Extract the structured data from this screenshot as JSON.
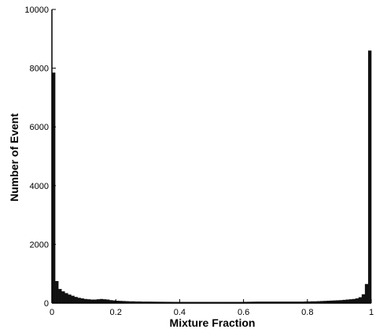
{
  "chart_data": {
    "type": "bar",
    "title": "",
    "xlabel": "Mixture Fraction",
    "ylabel": "Number of Event",
    "xlim": [
      0,
      1
    ],
    "ylim": [
      0,
      10000
    ],
    "x_ticks": [
      {
        "value": 0,
        "label": "0"
      },
      {
        "value": 0.2,
        "label": "0.2"
      },
      {
        "value": 0.4,
        "label": "0.4"
      },
      {
        "value": 0.6,
        "label": "0.6"
      },
      {
        "value": 0.8,
        "label": "0.8"
      },
      {
        "value": 1,
        "label": "1"
      }
    ],
    "y_ticks": [
      {
        "value": 0,
        "label": "0"
      },
      {
        "value": 2000,
        "label": "2000"
      },
      {
        "value": 4000,
        "label": "4000"
      },
      {
        "value": 6000,
        "label": "6000"
      },
      {
        "value": 8000,
        "label": "8000"
      },
      {
        "value": 10000,
        "label": "10000"
      }
    ],
    "grid": false,
    "bar_color": "#111111",
    "bin_width": 0.01,
    "bin_centers": [
      0.005,
      0.015,
      0.025,
      0.035,
      0.045,
      0.055,
      0.065,
      0.075,
      0.085,
      0.095,
      0.105,
      0.115,
      0.125,
      0.135,
      0.145,
      0.155,
      0.165,
      0.175,
      0.185,
      0.195,
      0.205,
      0.215,
      0.225,
      0.235,
      0.245,
      0.255,
      0.265,
      0.275,
      0.285,
      0.295,
      0.305,
      0.315,
      0.325,
      0.335,
      0.345,
      0.355,
      0.365,
      0.375,
      0.385,
      0.395,
      0.405,
      0.415,
      0.425,
      0.435,
      0.445,
      0.455,
      0.465,
      0.475,
      0.485,
      0.495,
      0.505,
      0.515,
      0.525,
      0.535,
      0.545,
      0.555,
      0.565,
      0.575,
      0.585,
      0.595,
      0.605,
      0.615,
      0.625,
      0.635,
      0.645,
      0.655,
      0.665,
      0.675,
      0.685,
      0.695,
      0.705,
      0.715,
      0.725,
      0.735,
      0.745,
      0.755,
      0.765,
      0.775,
      0.785,
      0.795,
      0.805,
      0.815,
      0.825,
      0.835,
      0.845,
      0.855,
      0.865,
      0.875,
      0.885,
      0.895,
      0.905,
      0.915,
      0.925,
      0.935,
      0.945,
      0.955,
      0.965,
      0.975,
      0.985,
      0.995
    ],
    "values": [
      7850,
      750,
      480,
      400,
      340,
      290,
      250,
      210,
      180,
      160,
      140,
      130,
      120,
      120,
      130,
      140,
      130,
      120,
      100,
      90,
      80,
      75,
      70,
      65,
      60,
      60,
      55,
      55,
      50,
      50,
      50,
      48,
      46,
      45,
      44,
      43,
      42,
      41,
      40,
      40,
      40,
      40,
      40,
      40,
      40,
      40,
      40,
      40,
      40,
      40,
      40,
      40,
      40,
      40,
      40,
      40,
      40,
      40,
      40,
      40,
      42,
      44,
      46,
      48,
      50,
      50,
      50,
      50,
      50,
      50,
      50,
      50,
      50,
      50,
      50,
      50,
      50,
      50,
      50,
      55,
      55,
      60,
      60,
      65,
      70,
      75,
      80,
      85,
      90,
      95,
      100,
      110,
      120,
      130,
      140,
      160,
      200,
      300,
      650,
      8600
    ]
  }
}
